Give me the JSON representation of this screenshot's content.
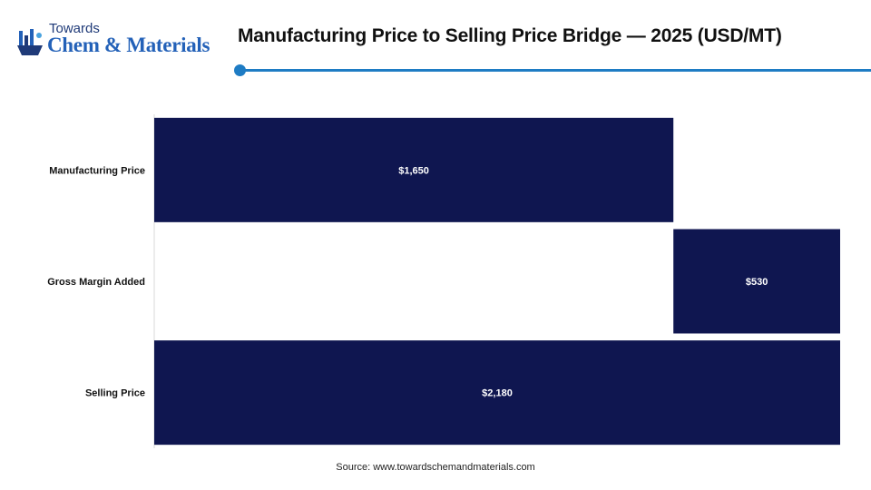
{
  "logo": {
    "top_text": "Towards",
    "main_text": "Chem & Materials"
  },
  "header": {
    "title": "Manufacturing Price to Selling Price Bridge — 2025 (USD/MT)"
  },
  "colors": {
    "bar": "#0f1650",
    "bar_label": "#ffffff",
    "accent": "#1e7cc4",
    "axis": "#d9d9d9"
  },
  "chart_data": {
    "type": "bar",
    "orientation": "horizontal",
    "subtype": "waterfall",
    "categories": [
      "Manufacturing Price",
      "Gross Margin Added",
      "Selling Price"
    ],
    "series": [
      {
        "values": [
          1650,
          530,
          2180
        ],
        "bases": [
          0,
          1650,
          0
        ],
        "labels": [
          "$1,650",
          "$530",
          "$2,180"
        ]
      }
    ],
    "xlim": [
      0,
      2180
    ],
    "grid": false,
    "legend": "none"
  },
  "footer": {
    "source": "Source: www.towardschemandmaterials.com"
  }
}
